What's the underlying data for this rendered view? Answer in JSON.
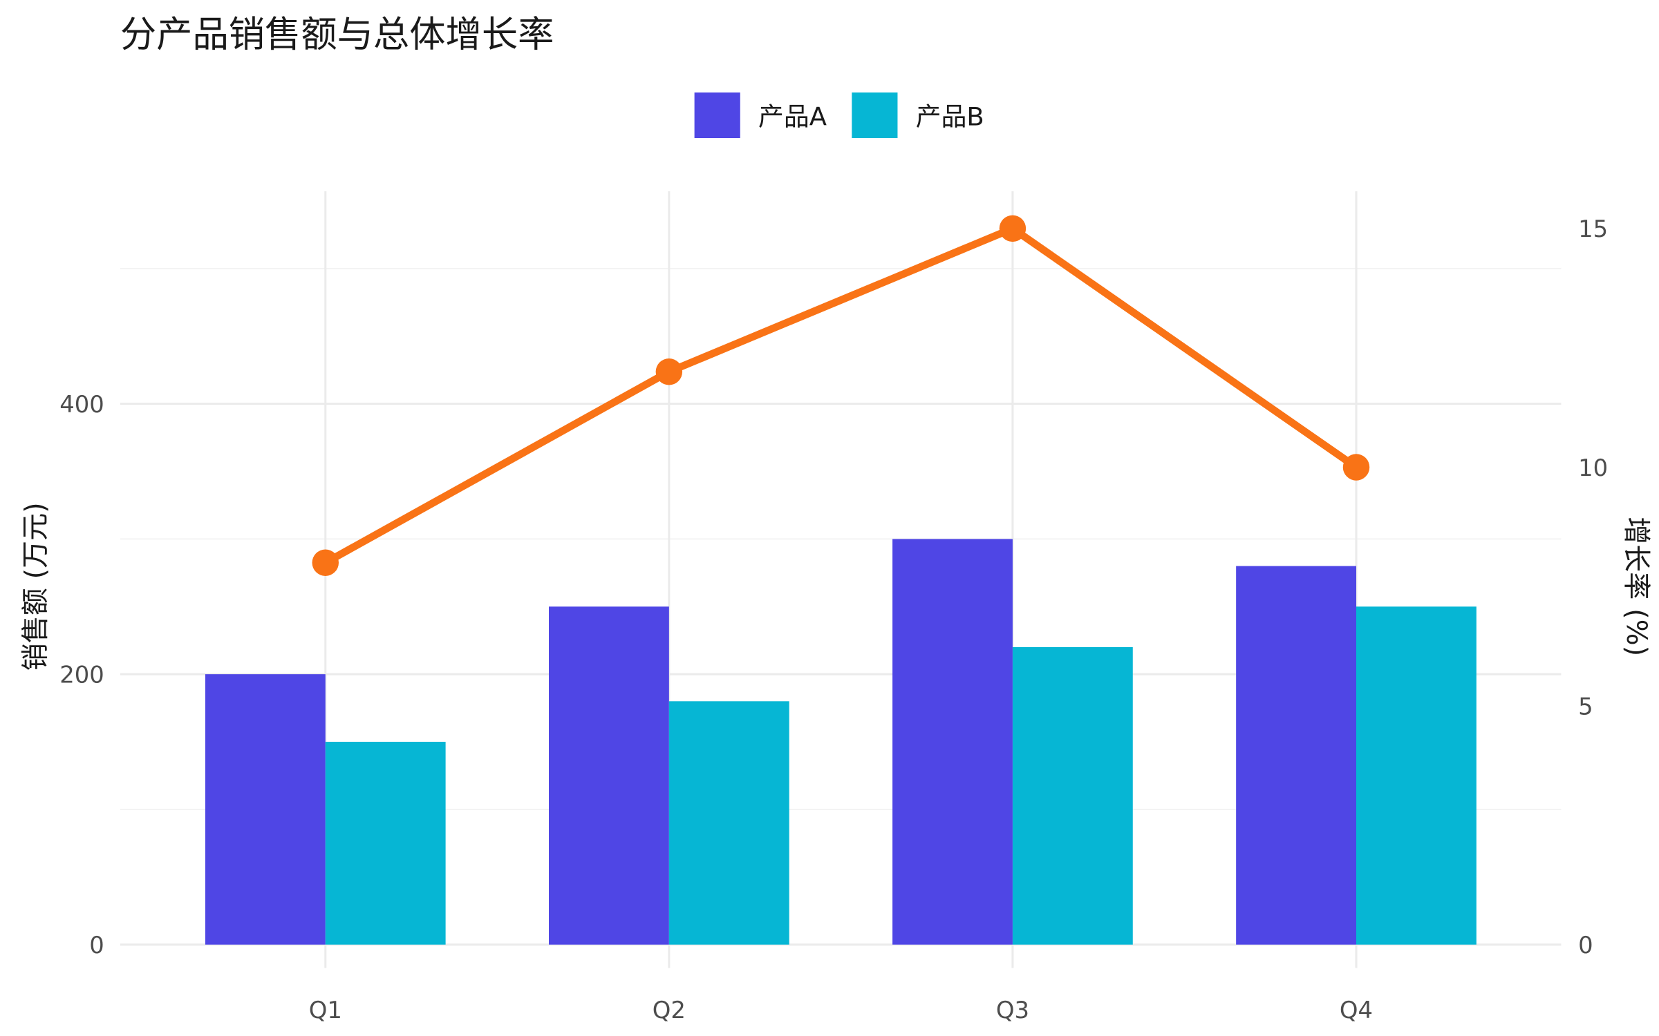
{
  "chart_data": {
    "type": "bar+line",
    "title": "分产品销售额与总体增长率",
    "categories": [
      "Q1",
      "Q2",
      "Q3",
      "Q4"
    ],
    "series": [
      {
        "name": "产品A",
        "type": "bar",
        "axis": "left",
        "color": "#4f46e5",
        "values": [
          200,
          250,
          300,
          280
        ]
      },
      {
        "name": "产品B",
        "type": "bar",
        "axis": "left",
        "color": "#06b6d4",
        "values": [
          150,
          180,
          220,
          250
        ]
      },
      {
        "name": "增长率",
        "type": "line",
        "axis": "right",
        "color": "#f97316",
        "values": [
          8,
          12,
          15,
          10
        ]
      }
    ],
    "ylabel": "销售额 (万元)",
    "y2label": "增长率 (%)",
    "yticks": [
      "0",
      "200",
      "400"
    ],
    "yticks_values": [
      0,
      200,
      400
    ],
    "y2ticks": [
      "0",
      "5",
      "10",
      "15"
    ],
    "y2ticks_values": [
      0,
      5,
      10,
      15
    ],
    "legend_position": "top"
  }
}
